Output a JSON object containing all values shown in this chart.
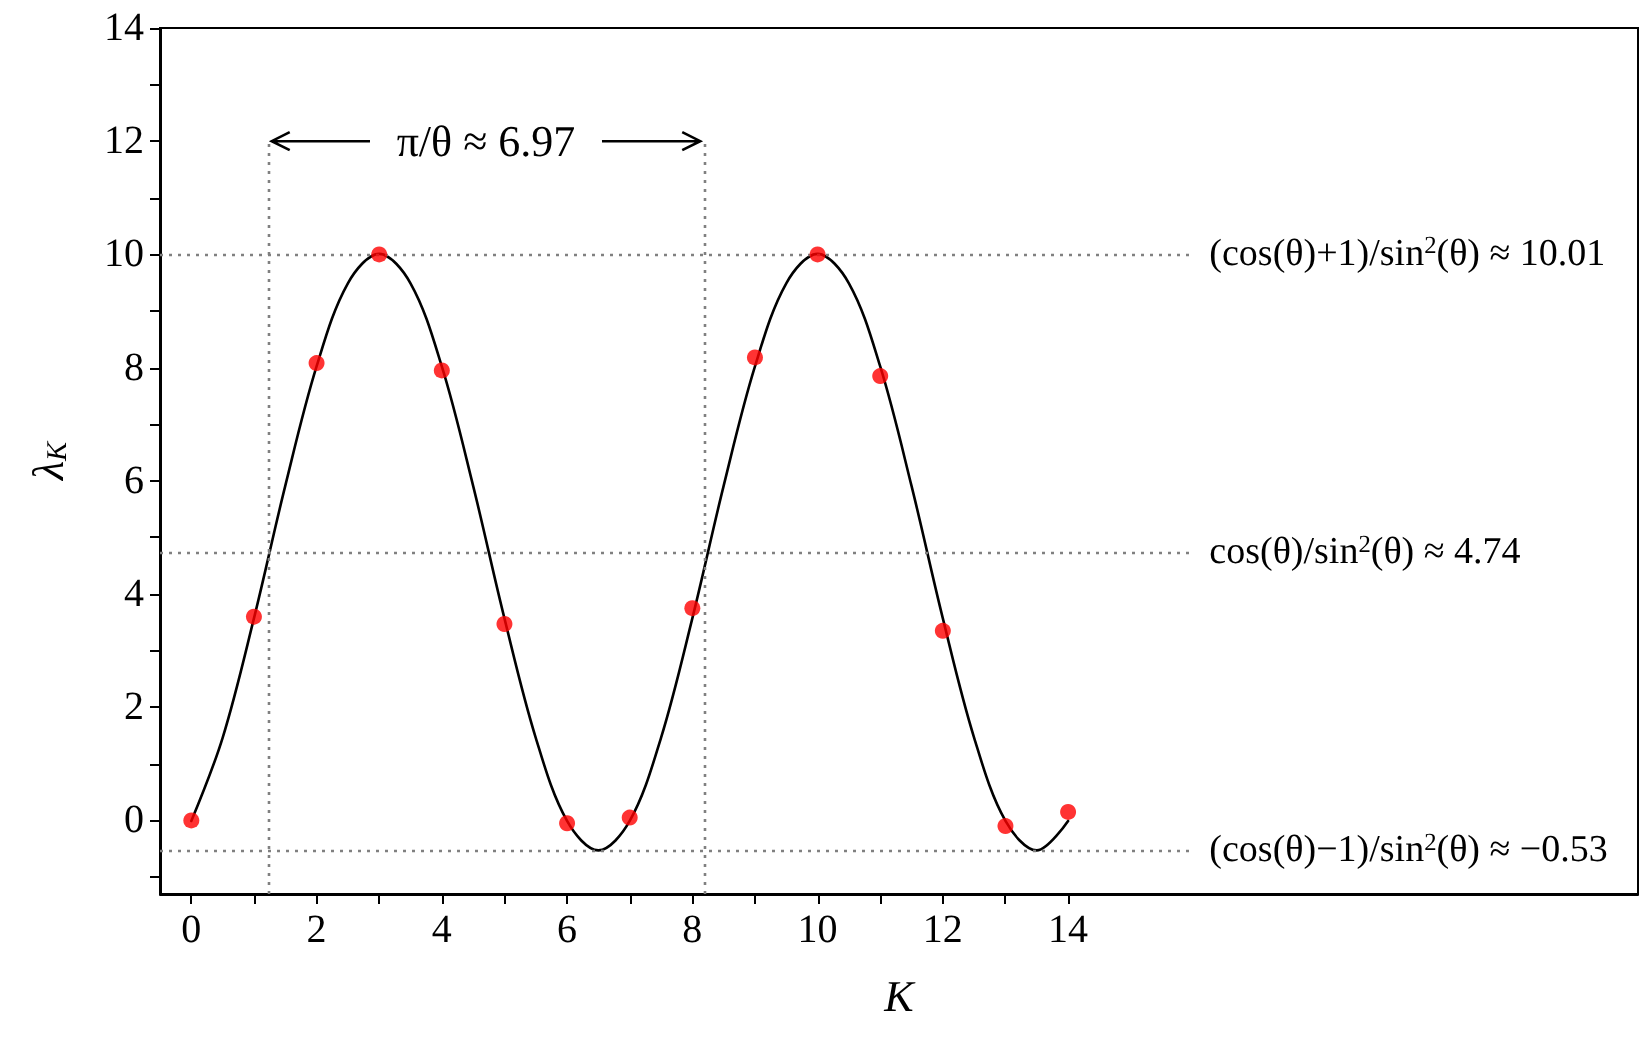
{
  "chart_data": {
    "type": "line",
    "xlabel": "K",
    "ylabel": "λ$_{K}$",
    "xlim": [
      -0.5,
      23.1
    ],
    "ylim": [
      -1.3,
      14
    ],
    "xticks": [
      0,
      {
        "value": 1,
        "label": null
      },
      2,
      {
        "value": 3,
        "label": null
      },
      4,
      {
        "value": 5,
        "label": null
      },
      6,
      {
        "value": 7,
        "label": null
      },
      8,
      {
        "value": 9,
        "label": null
      },
      10,
      {
        "value": 11,
        "label": null
      },
      12,
      {
        "value": 13,
        "label": null
      },
      14
    ],
    "yticks": [
      {
        "value": -1,
        "label": null
      },
      0,
      {
        "value": 1,
        "label": null
      },
      2,
      {
        "value": 3,
        "label": null
      },
      4,
      {
        "value": 5,
        "label": null
      },
      6,
      {
        "value": 7,
        "label": null
      },
      8,
      {
        "value": 9,
        "label": null
      },
      10,
      {
        "value": 11,
        "label": null
      },
      12,
      {
        "value": 13,
        "label": null
      },
      14
    ],
    "grid": false,
    "series": [
      {
        "color": "#000000",
        "marker": "none",
        "line_style": "solid",
        "x": [
          0,
          0.5,
          1,
          1.5,
          2,
          2.5,
          3,
          3.5,
          4,
          4.5,
          5,
          5.5,
          6,
          6.5,
          7,
          7.5,
          8,
          8.5,
          9,
          9.5,
          10,
          10.5,
          11,
          11.5,
          12,
          12.5,
          13,
          13.5,
          14
        ],
        "values": [
          -0.01,
          1.46,
          3.57,
          5.91,
          8.02,
          9.49,
          10.01,
          9.49,
          8.02,
          5.91,
          3.57,
          1.46,
          -0.01,
          -0.53,
          -0.01,
          1.46,
          3.57,
          5.91,
          8.02,
          9.49,
          10.01,
          9.49,
          8.02,
          5.91,
          3.57,
          1.46,
          -0.01,
          -0.53,
          -0.01
        ]
      },
      {
        "type": "scatter",
        "color": "#ff0000",
        "marker": "circle",
        "x": [
          0,
          1,
          2,
          3,
          4,
          5,
          6,
          7,
          8,
          9,
          10,
          11,
          12,
          13,
          14
        ],
        "values": [
          0,
          3.6,
          8.08,
          10.0,
          7.95,
          3.47,
          -0.05,
          0.05,
          3.75,
          8.18,
          10.0,
          7.85,
          3.35,
          -0.1,
          0.15
        ]
      }
    ],
    "ref_lines": [
      {
        "axis": "y",
        "value": 10.01,
        "label": "(cos(θ)+1)/sin$^{2}$(θ) ≈ 10.01",
        "color": "#808080",
        "line_style": "dotted"
      },
      {
        "axis": "y",
        "value": 4.74,
        "label": "cos(θ)/sin$^{2}$(θ) ≈ 4.74",
        "color": "#808080",
        "line_style": "dotted"
      },
      {
        "axis": "y",
        "value": -0.53,
        "label": "(cos(θ)−1)/sin$^{2}$(θ) ≈ −0.53",
        "color": "#808080",
        "line_style": "dotted"
      },
      {
        "axis": "x",
        "value": 1.22,
        "color": "#808080",
        "line_style": "dotted"
      },
      {
        "axis": "x",
        "value": 8.19,
        "color": "#808080",
        "line_style": "dotted"
      }
    ],
    "annotations": [
      "π/θ ≈ 6.97"
    ]
  }
}
